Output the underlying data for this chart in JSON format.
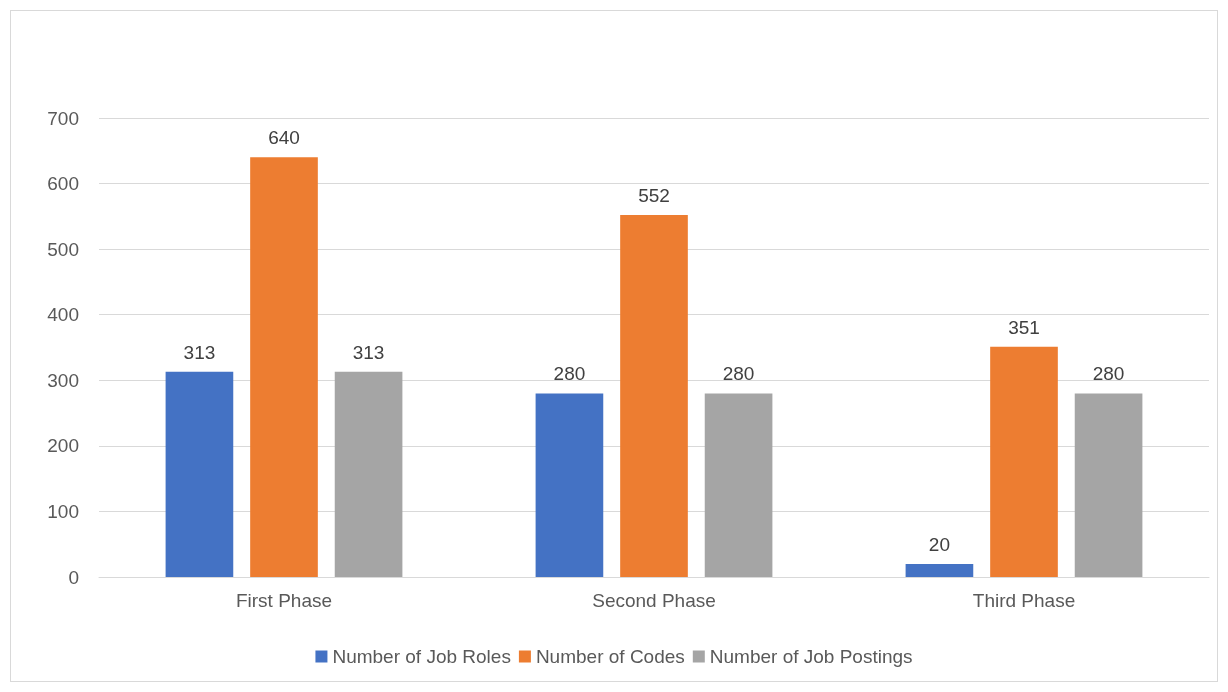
{
  "chart_data": {
    "type": "bar",
    "categories": [
      "First Phase",
      "Second Phase",
      "Third Phase"
    ],
    "series": [
      {
        "name": "Number of Job Roles",
        "color": "#4472c4",
        "values": [
          313,
          280,
          20
        ]
      },
      {
        "name": "Number of Codes",
        "color": "#ed7d31",
        "values": [
          640,
          552,
          351
        ]
      },
      {
        "name": "Number of Job Postings",
        "color": "#a5a5a5",
        "values": [
          313,
          280,
          280
        ]
      }
    ],
    "ylim": [
      0,
      700
    ],
    "yticks": [
      0,
      100,
      200,
      300,
      400,
      500,
      600,
      700
    ],
    "grid": "y",
    "legend": "bottom",
    "data_labels": true
  }
}
